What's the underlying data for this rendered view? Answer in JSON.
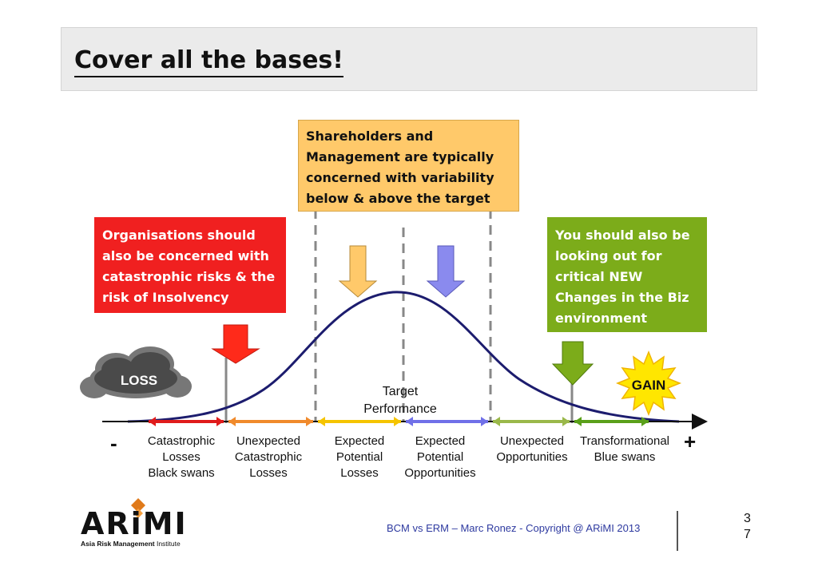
{
  "slide": {
    "title": "Cover all the bases!",
    "footer": "BCM vs ERM – Marc Ronez - Copyright @ ARiMI 2013",
    "page_number": "3\n7",
    "page_number_lines": [
      "3",
      "7"
    ]
  },
  "callouts": {
    "shareholders": [
      "Shareholders and",
      "Management are typically",
      "concerned with variability",
      "below & above the target"
    ],
    "organisations": [
      "Organisations should",
      "also  be concerned with",
      "catastrophic risks & the",
      "risk of Insolvency"
    ],
    "new_changes": [
      "You should also  be",
      "looking out for",
      "critical NEW",
      "Changes in the Biz",
      "environment"
    ]
  },
  "badges": {
    "loss": "LOSS",
    "gain": "GAIN"
  },
  "target": {
    "line1": "Target",
    "line2": "Performance"
  },
  "axis": {
    "minus": "-",
    "plus": "+"
  },
  "categories": [
    {
      "lines": [
        "Catastrophic",
        "Losses",
        "Black swans"
      ],
      "color": "#e01b1b"
    },
    {
      "lines": [
        "Unexpected",
        "Catastrophic",
        "Losses"
      ],
      "color": "#f08a2c"
    },
    {
      "lines": [
        "Expected",
        "Potential",
        "Losses"
      ],
      "color": "#f5c400"
    },
    {
      "lines": [
        "Expected",
        "Potential",
        "Opportunities"
      ],
      "color": "#7070e8"
    },
    {
      "lines": [
        "Unexpected",
        "Opportunities"
      ],
      "color": "#9ab84a"
    },
    {
      "lines": [
        "Transformational",
        "Blue swans"
      ],
      "color": "#5aa01a"
    }
  ],
  "colors": {
    "curve": "#1c1c6e",
    "arrow_red": "#ff2a1a",
    "arrow_orange": "#ffc96a",
    "arrow_blue": "#8a8aee",
    "arrow_green": "#7cac1a",
    "gain_star": "#ffe600",
    "logo_diamond": "#e07a1a"
  },
  "logo": {
    "name": "ARiMI",
    "sub_bold": "Asia Risk Management",
    "sub_rest": " Institute"
  }
}
